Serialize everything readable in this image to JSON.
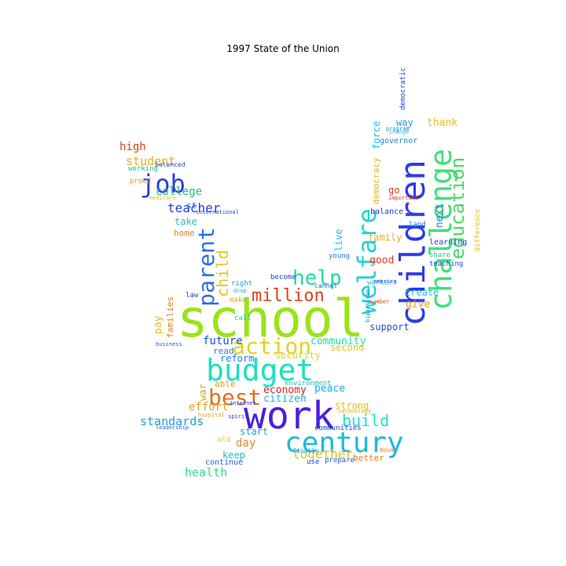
{
  "title": "1997 State of the Union",
  "words": [
    {
      "text": "school",
      "color": "#9be31a"
    },
    {
      "text": "work",
      "color": "#4a1fe0"
    },
    {
      "text": "budget",
      "color": "#1fe0c0"
    },
    {
      "text": "children",
      "color": "#2f3ae6"
    },
    {
      "text": "challenge",
      "color": "#3fe07a"
    },
    {
      "text": "century",
      "color": "#1fb8e0"
    },
    {
      "text": "welfare",
      "color": "#1fd3d8"
    },
    {
      "text": "education",
      "color": "#4ad86a"
    },
    {
      "text": "parent",
      "color": "#2a6fe0"
    },
    {
      "text": "job",
      "color": "#2a3fe0"
    },
    {
      "text": "best",
      "color": "#e0701f"
    },
    {
      "text": "million",
      "color": "#e0401f"
    },
    {
      "text": "action",
      "color": "#e0d41f"
    },
    {
      "text": "help",
      "color": "#1fe09a"
    },
    {
      "text": "child",
      "color": "#e0c81f"
    },
    {
      "text": "build",
      "color": "#1fe0d0"
    },
    {
      "text": "together",
      "color": "#e0c01f"
    },
    {
      "text": "standards",
      "color": "#1fa0e0"
    },
    {
      "text": "health",
      "color": "#2fe08a"
    },
    {
      "text": "student",
      "color": "#e0b01f"
    },
    {
      "text": "teacher",
      "color": "#1f40e0"
    },
    {
      "text": "college",
      "color": "#1fc080"
    },
    {
      "text": "high",
      "color": "#e0401f"
    },
    {
      "text": "future",
      "color": "#1f50e0"
    },
    {
      "text": "community",
      "color": "#1fe0a0"
    },
    {
      "text": "economy",
      "color": "#e0201f"
    },
    {
      "text": "peace",
      "color": "#1fa8e0"
    },
    {
      "text": "citizen",
      "color": "#1fb0e0"
    },
    {
      "text": "give",
      "color": "#e0a01f"
    },
    {
      "text": "create",
      "color": "#1fc0e0"
    },
    {
      "text": "good",
      "color": "#e0401f"
    },
    {
      "text": "family",
      "color": "#e0b01f"
    },
    {
      "text": "support",
      "color": "#1f50e0"
    },
    {
      "text": "effort",
      "color": "#e0a01f"
    },
    {
      "text": "day",
      "color": "#e08a1f"
    },
    {
      "text": "start",
      "color": "#1fa0e0"
    },
    {
      "text": "keep",
      "color": "#1fc0c0"
    },
    {
      "text": "reform",
      "color": "#1f80e0"
    },
    {
      "text": "security",
      "color": "#e0d41f"
    },
    {
      "text": "second",
      "color": "#e0c81f"
    },
    {
      "text": "strong",
      "color": "#e0c01f"
    },
    {
      "text": "thank",
      "color": "#e0c01f"
    },
    {
      "text": "way",
      "color": "#1fa0e0"
    },
    {
      "text": "next",
      "color": "#1f80e0"
    },
    {
      "text": "force",
      "color": "#1fc0e0"
    },
    {
      "text": "democracy",
      "color": "#e0b01f"
    },
    {
      "text": "governor",
      "color": "#1f80e0"
    },
    {
      "text": "balance",
      "color": "#1f40e0"
    },
    {
      "text": "home",
      "color": "#e0801f"
    },
    {
      "text": "take",
      "color": "#1fc0c0"
    },
    {
      "text": "st",
      "color": "#1f60e0"
    },
    {
      "text": "pay",
      "color": "#e0c01f"
    },
    {
      "text": "families",
      "color": "#e0801f"
    },
    {
      "text": "read",
      "color": "#1f80e0"
    },
    {
      "text": "able",
      "color": "#e0a01f"
    },
    {
      "text": "better",
      "color": "#e0801f"
    },
    {
      "text": "continue",
      "color": "#1f60e0"
    },
    {
      "text": "learning",
      "color": "#1f40e0"
    },
    {
      "text": "go",
      "color": "#e0401f"
    },
    {
      "text": "live",
      "color": "#1fc0e0"
    },
    {
      "text": "war",
      "color": "#e0a01f"
    },
    {
      "text": "environment",
      "color": "#1fc0c0"
    },
    {
      "text": "communities",
      "color": "#1f40e0"
    },
    {
      "text": "prepare",
      "color": "#1f60e0"
    },
    {
      "text": "land",
      "color": "#1f80e0"
    },
    {
      "text": "teaching",
      "color": "#1f40e0"
    },
    {
      "text": "share",
      "color": "#1fc080"
    },
    {
      "text": "democratic",
      "color": "#1f40e0"
    },
    {
      "text": "difference",
      "color": "#e0c01f"
    },
    {
      "text": "law",
      "color": "#1f40e0"
    },
    {
      "text": "right",
      "color": "#1fa0e0"
    },
    {
      "text": "call",
      "color": "#1fc0c0"
    },
    {
      "text": "make",
      "color": "#e0a01f"
    },
    {
      "text": "become",
      "color": "#1f40e0"
    },
    {
      "text": "cannot",
      "color": "#1f60e0"
    },
    {
      "text": "young",
      "color": "#1f80e0"
    },
    {
      "text": "workers",
      "color": "#1fc0e0"
    },
    {
      "text": "use",
      "color": "#1f40e0"
    },
    {
      "text": "finally",
      "color": "#1fa0e0"
    },
    {
      "text": "move",
      "color": "#e0801f"
    },
    {
      "text": "proud",
      "color": "#e0a01f"
    },
    {
      "text": "working",
      "color": "#1fc080"
    },
    {
      "text": "balanced",
      "color": "#1f40e0"
    },
    {
      "text": "medicare",
      "color": "#e0c01f"
    },
    {
      "text": "international",
      "color": "#1f40e0"
    },
    {
      "text": "business",
      "color": "#1f60e0"
    },
    {
      "text": "internet",
      "color": "#1f40e0"
    },
    {
      "text": "technology",
      "color": "#e0a01f"
    },
    {
      "text": "program",
      "color": "#1f80e0"
    },
    {
      "text": "important",
      "color": "#e0401f"
    },
    {
      "text": "change",
      "color": "#1fc0c0"
    },
    {
      "text": "america",
      "color": "#1f40e0"
    },
    {
      "text": "bipartisan",
      "color": "#1f80e0"
    },
    {
      "text": "number",
      "color": "#e0401f"
    },
    {
      "text": "drop",
      "color": "#1fa0e0"
    },
    {
      "text": "leadership",
      "color": "#1f60e0"
    },
    {
      "text": "spirit",
      "color": "#1f40e0"
    },
    {
      "text": "hospital",
      "color": "#e0a01f"
    },
    {
      "text": "old",
      "color": "#e0c01f"
    }
  ]
}
